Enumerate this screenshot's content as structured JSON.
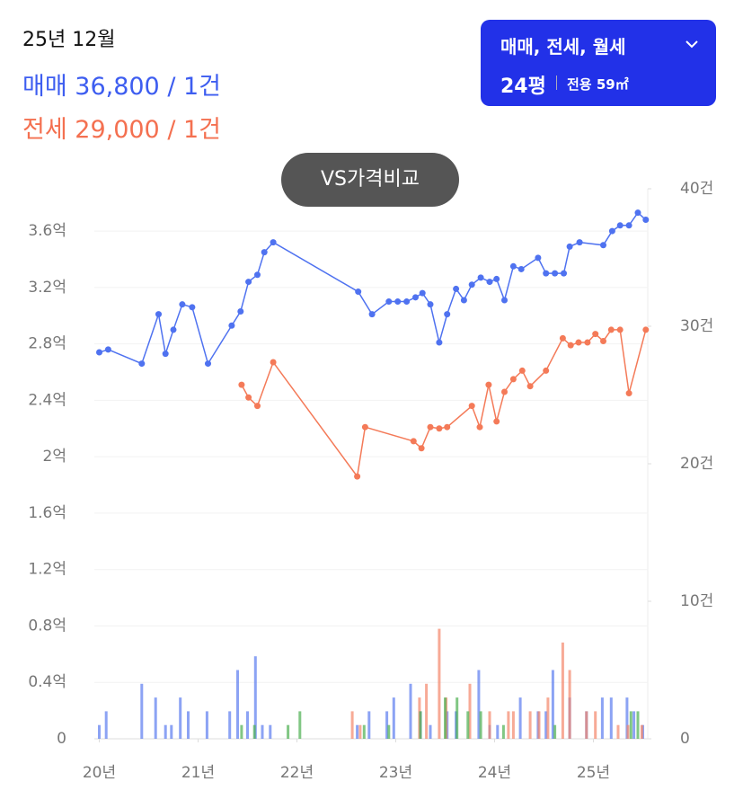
{
  "header": {
    "date": "25년 12월",
    "sale": "매매 36,800 / 1건",
    "jeonse": "전세 29,000 / 1건"
  },
  "filter": {
    "types": "매매, 전세, 월세",
    "size": "24평",
    "area": "전용 59㎡"
  },
  "compare_button": "VS가격비교",
  "chart_data": {
    "type": "line",
    "xlim": [
      2019.95,
      2025.55
    ],
    "xticks": [
      {
        "value": 2020,
        "label": "20년"
      },
      {
        "value": 2021,
        "label": "21년"
      },
      {
        "value": 2022,
        "label": "22년"
      },
      {
        "value": 2023,
        "label": "23년"
      },
      {
        "value": 2024,
        "label": "24년"
      },
      {
        "value": 2025,
        "label": "25년"
      }
    ],
    "ylim": [
      0,
      3.9
    ],
    "yticks": [
      0,
      {
        "value": 0.4,
        "label": "0.4억"
      },
      {
        "value": 0.8,
        "label": "0.8억"
      },
      {
        "value": 1.2,
        "label": "1.2억"
      },
      {
        "value": 1.6,
        "label": "1.6억"
      },
      {
        "value": 2,
        "label": "2억"
      },
      {
        "value": 2.4,
        "label": "2.4억"
      },
      {
        "value": 2.8,
        "label": "2.8억"
      },
      {
        "value": 3.2,
        "label": "3.2억"
      },
      {
        "value": 3.6,
        "label": "3.6억"
      }
    ],
    "y2lim": [
      0,
      40
    ],
    "y2ticks": [
      0,
      {
        "value": 10,
        "label": "10건"
      },
      {
        "value": 20,
        "label": "20건"
      },
      {
        "value": 30,
        "label": "30건"
      },
      {
        "value": 40,
        "label": "40건"
      }
    ],
    "grid": true,
    "series": [
      {
        "kind": "bar",
        "axis": "y2",
        "color": "#5b7cf0",
        "x": [
          2020.0,
          2020.07,
          2020.43,
          2020.57,
          2020.67,
          2020.73,
          2020.82,
          2020.9,
          2021.09,
          2021.32,
          2021.4,
          2021.5,
          2021.58,
          2021.65,
          2021.73,
          2022.61,
          2022.73,
          2022.91,
          2022.98,
          2023.15,
          2023.25,
          2023.35,
          2023.52,
          2023.61,
          2023.84,
          2023.95,
          2024.03,
          2024.26,
          2024.44,
          2024.52,
          2024.59,
          2024.76,
          2024.93,
          2025.09,
          2025.18,
          2025.34,
          2025.41,
          2025.5
        ],
        "values": [
          1,
          2,
          4,
          3,
          1,
          1,
          3,
          2,
          2,
          2,
          5,
          2,
          6,
          1,
          1,
          1,
          2,
          2,
          3,
          4,
          2,
          1,
          2,
          2,
          5,
          1,
          1,
          3,
          2,
          2,
          5,
          3,
          2,
          3,
          3,
          3,
          2,
          1
        ]
      },
      {
        "kind": "bar",
        "axis": "y2",
        "color": "#f4866a",
        "x": [
          2022.56,
          2022.64,
          2023.24,
          2023.31,
          2023.44,
          2023.51,
          2023.75,
          2023.95,
          2024.14,
          2024.19,
          2024.36,
          2024.45,
          2024.54,
          2024.69,
          2024.76,
          2024.93,
          2025.02,
          2025.25,
          2025.35,
          2025.49
        ],
        "values": [
          2,
          1,
          3,
          4,
          8,
          3,
          4,
          2,
          2,
          2,
          2,
          2,
          3,
          7,
          5,
          2,
          2,
          1,
          1,
          1
        ]
      },
      {
        "kind": "bar",
        "axis": "y2",
        "color": "#4caf50",
        "x": [
          2021.44,
          2021.57,
          2021.91,
          2022.03,
          2022.68,
          2022.93,
          2023.25,
          2023.5,
          2023.62,
          2023.73,
          2023.86,
          2024.09,
          2024.61,
          2025.38,
          2025.45
        ],
        "values": [
          1,
          1,
          1,
          2,
          1,
          1,
          2,
          3,
          3,
          2,
          2,
          1,
          1,
          2,
          2
        ]
      },
      {
        "kind": "line",
        "color": "#4f72f0",
        "x": [
          2020.0,
          2020.09,
          2020.43,
          2020.6,
          2020.67,
          2020.75,
          2020.84,
          2020.94,
          2021.1,
          2021.34,
          2021.43,
          2021.51,
          2021.6,
          2021.67,
          2021.76,
          2022.62,
          2022.76,
          2022.93,
          2023.02,
          2023.11,
          2023.2,
          2023.27,
          2023.35,
          2023.44,
          2023.52,
          2023.61,
          2023.69,
          2023.77,
          2023.86,
          2023.95,
          2024.02,
          2024.1,
          2024.19,
          2024.27,
          2024.44,
          2024.52,
          2024.61,
          2024.7,
          2024.76,
          2024.86,
          2025.1,
          2025.19,
          2025.27,
          2025.36,
          2025.45,
          2025.53
        ],
        "values": [
          2.74,
          2.76,
          2.66,
          3.01,
          2.73,
          2.9,
          3.08,
          3.06,
          2.66,
          2.93,
          3.03,
          3.24,
          3.29,
          3.45,
          3.52,
          3.17,
          3.01,
          3.1,
          3.1,
          3.1,
          3.13,
          3.16,
          3.08,
          2.81,
          3.01,
          3.19,
          3.11,
          3.22,
          3.27,
          3.24,
          3.26,
          3.11,
          3.35,
          3.33,
          3.41,
          3.3,
          3.3,
          3.3,
          3.49,
          3.52,
          3.5,
          3.6,
          3.64,
          3.64,
          3.73,
          3.68
        ]
      },
      {
        "kind": "line",
        "color": "#f47a58",
        "x": [
          2021.44,
          2021.51,
          2021.6,
          2021.76,
          2022.61,
          2022.69,
          2023.18,
          2023.26,
          2023.35,
          2023.44,
          2023.52,
          2023.77,
          2023.85,
          2023.94,
          2024.02,
          2024.1,
          2024.19,
          2024.28,
          2024.36,
          2024.52,
          2024.69,
          2024.77,
          2024.85,
          2024.94,
          2025.02,
          2025.1,
          2025.18,
          2025.27,
          2025.36,
          2025.53
        ],
        "values": [
          2.51,
          2.42,
          2.36,
          2.67,
          1.86,
          2.21,
          2.11,
          2.06,
          2.21,
          2.2,
          2.21,
          2.36,
          2.21,
          2.51,
          2.25,
          2.46,
          2.55,
          2.61,
          2.5,
          2.61,
          2.84,
          2.79,
          2.81,
          2.81,
          2.87,
          2.82,
          2.9,
          2.9,
          2.45,
          2.9
        ]
      }
    ]
  }
}
